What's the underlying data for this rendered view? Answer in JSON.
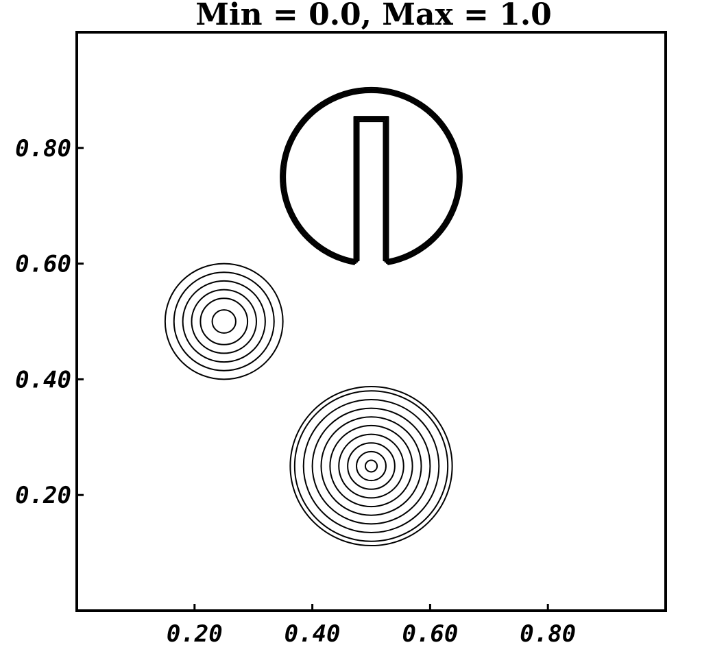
{
  "chart_data": {
    "type": "contour",
    "title": "Min = 0.0, Max = 1.0",
    "xlabel": "",
    "ylabel": "",
    "xlim": [
      0.0,
      1.0
    ],
    "ylim": [
      0.0,
      1.0
    ],
    "xticks": [
      0.2,
      0.4,
      0.6,
      0.8
    ],
    "yticks": [
      0.2,
      0.4,
      0.6,
      0.8
    ],
    "xtick_labels": [
      "0.20",
      "0.40",
      "0.60",
      "0.80"
    ],
    "ytick_labels": [
      "0.20",
      "0.40",
      "0.60",
      "0.80"
    ],
    "value_range": [
      0.0,
      1.0
    ],
    "grid": false,
    "colors": {
      "line": "#000000",
      "background": "#ffffff"
    },
    "shapes": [
      {
        "kind": "slotted-cylinder",
        "center": [
          0.5,
          0.75
        ],
        "radius": 0.15,
        "slot_x_range": [
          0.475,
          0.525
        ],
        "slot_top_y": 0.85,
        "contour_count": 4
      },
      {
        "kind": "gaussian-hump",
        "center": [
          0.25,
          0.5
        ],
        "level_radii": [
          0.02,
          0.04,
          0.055,
          0.07,
          0.085,
          0.1
        ]
      },
      {
        "kind": "cone",
        "center": [
          0.5,
          0.25
        ],
        "level_radii": [
          0.01,
          0.025,
          0.04,
          0.055,
          0.07,
          0.085,
          0.1,
          0.115,
          0.13,
          0.1375
        ]
      }
    ]
  }
}
